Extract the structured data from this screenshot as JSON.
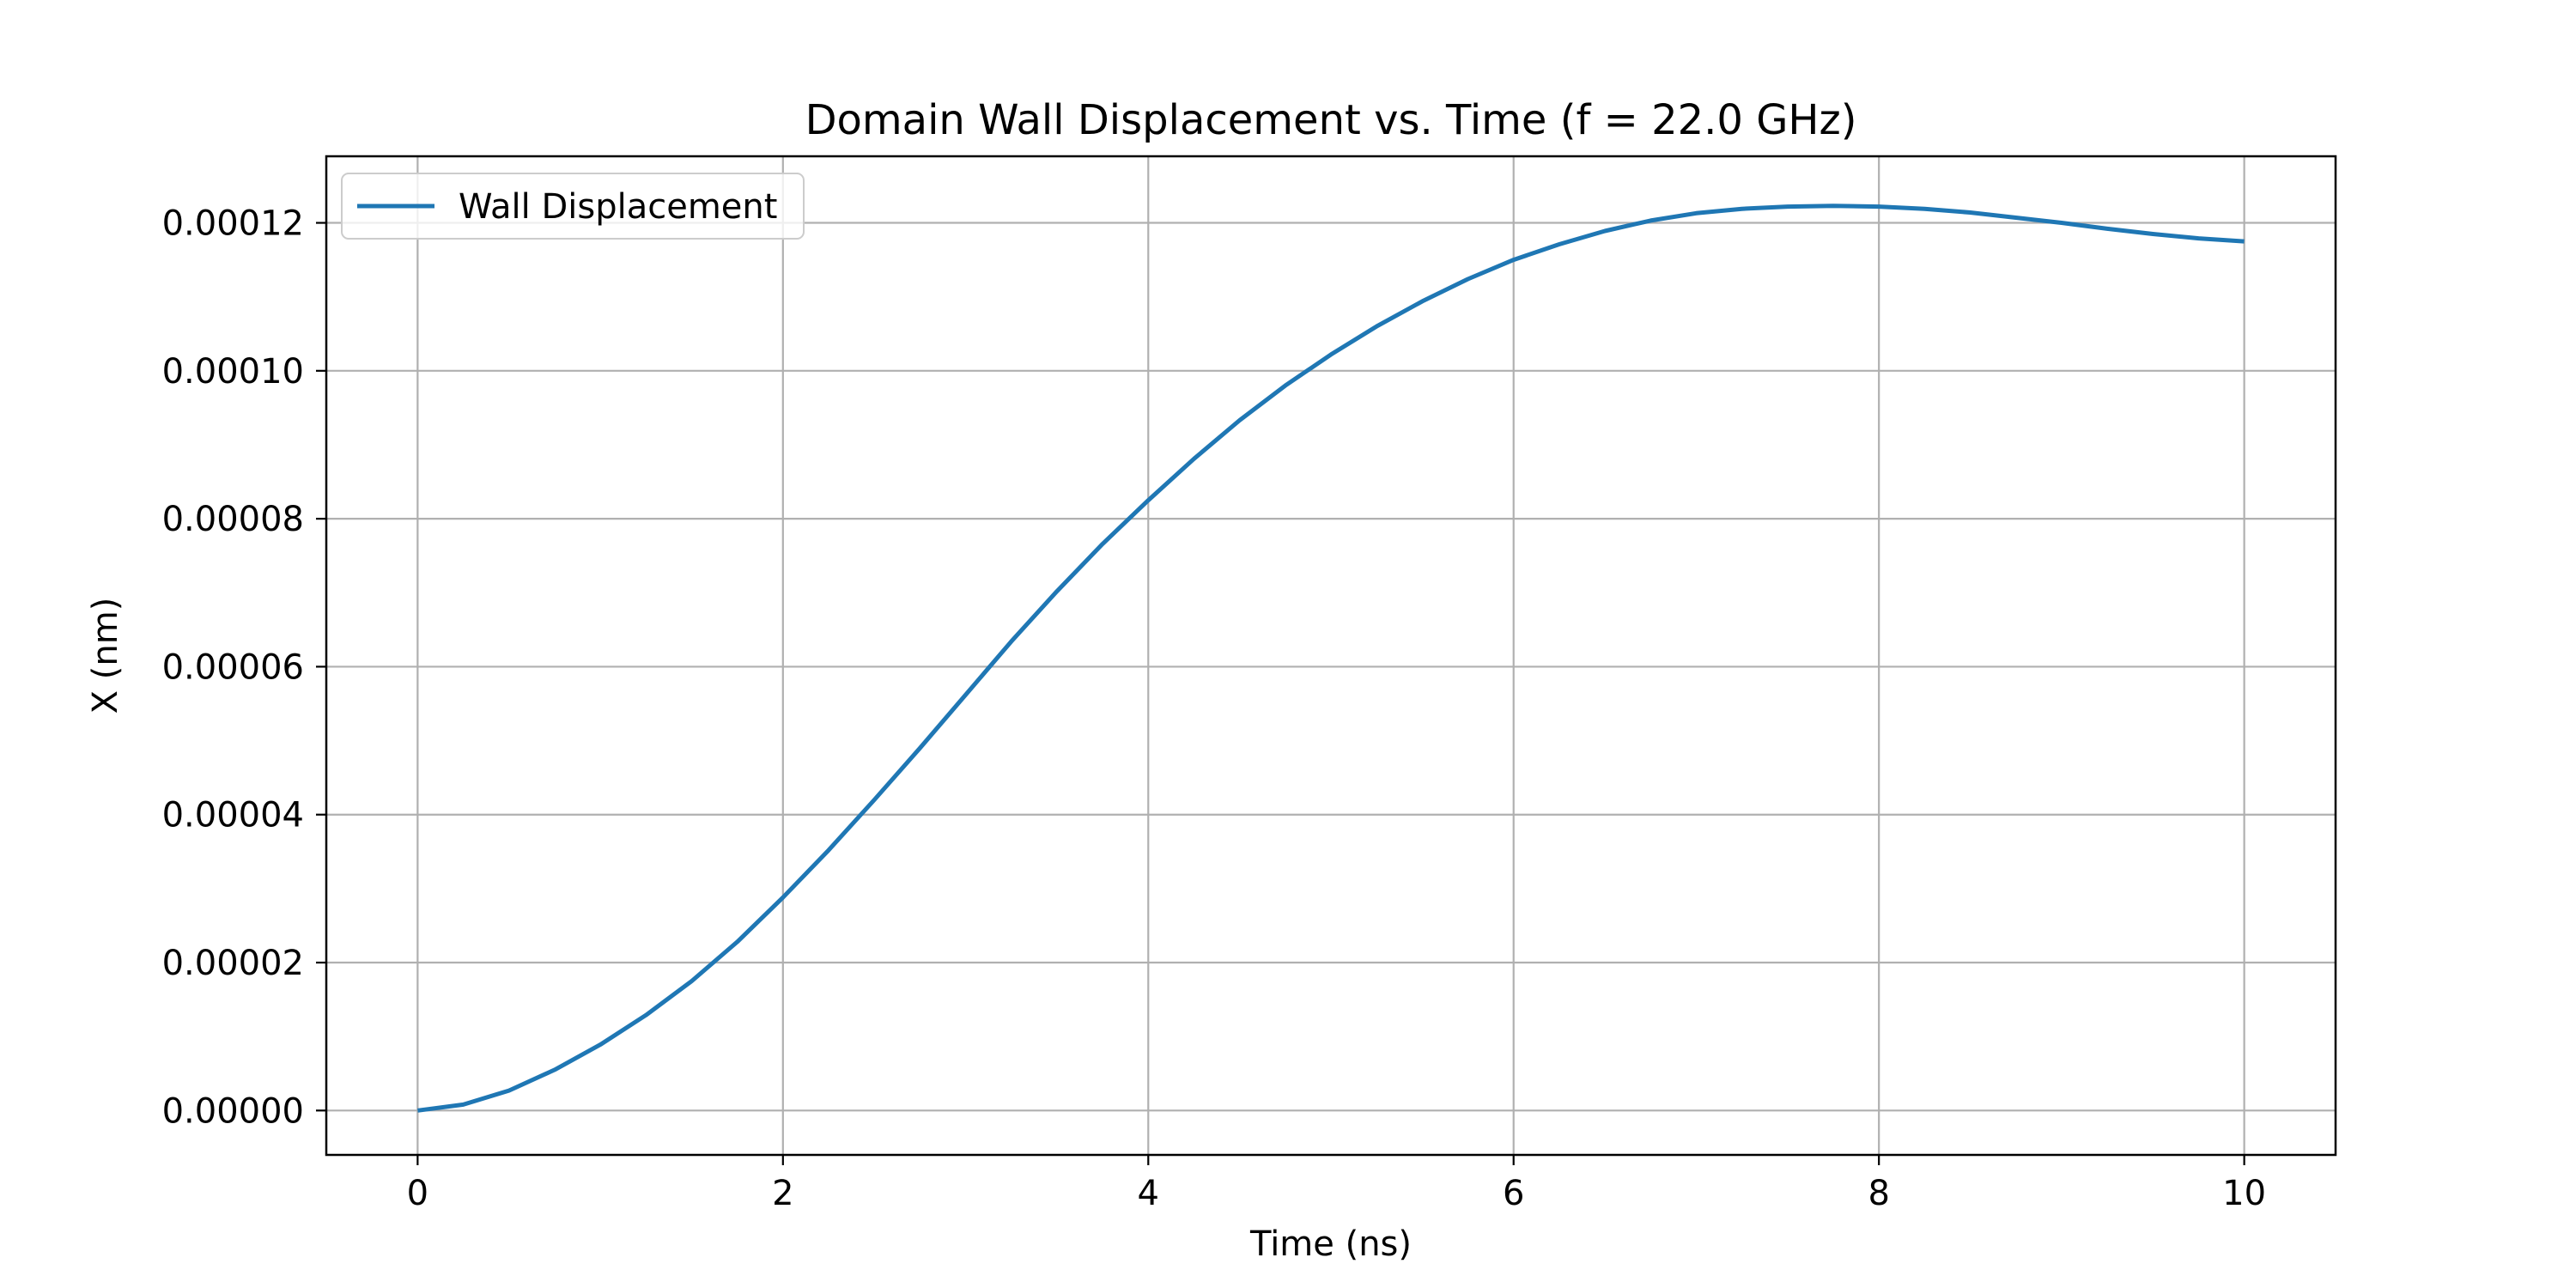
{
  "chart_data": {
    "type": "line",
    "title": "Domain Wall Displacement vs. Time (f = 22.0 GHz)",
    "xlabel": "Time (ns)",
    "ylabel": "X (nm)",
    "xlim": [
      -0.5,
      10.5
    ],
    "ylim": [
      -6e-06,
      0.000129
    ],
    "xticks": [
      0,
      2,
      4,
      6,
      8,
      10
    ],
    "xtick_labels": [
      "0",
      "2",
      "4",
      "6",
      "8",
      "10"
    ],
    "yticks": [
      0,
      2e-05,
      4e-05,
      6e-05,
      8e-05,
      0.0001,
      0.00012
    ],
    "ytick_labels": [
      "0.00000",
      "0.00002",
      "0.00004",
      "0.00006",
      "0.00008",
      "0.00010",
      "0.00012"
    ],
    "grid": true,
    "legend_position": "top-left",
    "series": [
      {
        "name": "Wall Displacement",
        "color": "#1f77b4",
        "x": [
          0,
          0.25,
          0.5,
          0.75,
          1,
          1.25,
          1.5,
          1.75,
          2,
          2.25,
          2.5,
          2.75,
          3,
          3.25,
          3.5,
          3.75,
          4,
          4.25,
          4.5,
          4.75,
          5,
          5.25,
          5.5,
          5.75,
          6,
          6.25,
          6.5,
          6.75,
          7,
          7.25,
          7.5,
          7.75,
          8,
          8.25,
          8.5,
          8.75,
          9,
          9.25,
          9.5,
          9.75,
          10
        ],
        "y": [
          0,
          8e-07,
          2.7e-06,
          5.5e-06,
          8.9e-06,
          1.29e-05,
          1.75e-05,
          2.28e-05,
          2.88e-05,
          3.52e-05,
          4.2e-05,
          4.9e-05,
          5.62e-05,
          6.34e-05,
          7.02e-05,
          7.66e-05,
          8.25e-05,
          8.81e-05,
          9.33e-05,
          9.8e-05,
          0.0001022,
          0.000106,
          0.0001094,
          0.0001124,
          0.000115,
          0.0001171,
          0.0001189,
          0.0001203,
          0.0001213,
          0.0001219,
          0.0001222,
          0.0001223,
          0.0001222,
          0.0001219,
          0.0001214,
          0.0001207,
          0.00012,
          0.0001192,
          0.0001185,
          0.0001179,
          0.0001175
        ]
      }
    ]
  }
}
